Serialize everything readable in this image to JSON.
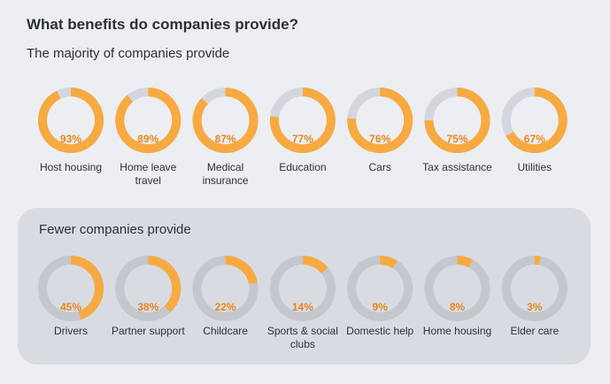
{
  "title": "What benefits do companies provide?",
  "chart_data": [
    {
      "type": "donut",
      "subtitle": "The majority of companies provide",
      "categories": [
        "Host housing",
        "Home leave travel",
        "Medical insurance",
        "Education",
        "Cars",
        "Tax assistance",
        "Utilities"
      ],
      "values": [
        93,
        89,
        87,
        77,
        76,
        75,
        67
      ],
      "value_labels": [
        "93%",
        "89%",
        "87%",
        "77%",
        "76%",
        "75%",
        "67%"
      ],
      "color": "#f7aa41",
      "track_color": "#d3d7dd"
    },
    {
      "type": "donut",
      "subtitle": "Fewer companies provide",
      "categories": [
        "Drivers",
        "Partner support",
        "Childcare",
        "Sports & social clubs",
        "Domestic help",
        "Home housing",
        "Elder care"
      ],
      "values": [
        45,
        38,
        22,
        14,
        9,
        8,
        3
      ],
      "value_labels": [
        "45%",
        "38%",
        "22%",
        "14%",
        "9%",
        "8%",
        "3%"
      ],
      "color": "#f7aa41",
      "track_color": "#c3c7ce"
    }
  ]
}
